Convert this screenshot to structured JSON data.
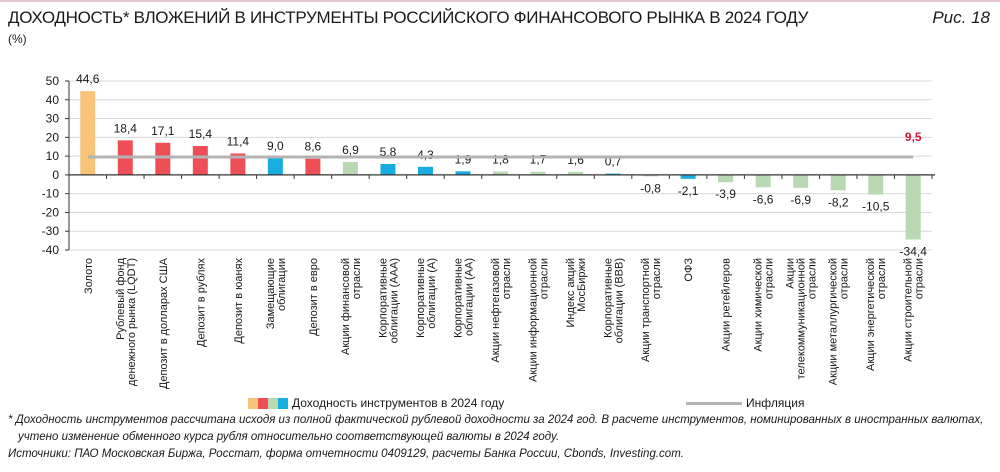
{
  "header": {
    "title": "ДОХОДНОСТЬ* ВЛОЖЕНИЙ В ИНСТРУМЕНТЫ РОССИЙСКОГО ФИНАНСОВОГО РЫНКА В 2024 ГОДУ",
    "figure": "Рис. 18",
    "unit": "(%)"
  },
  "colors": {
    "gold": "#F8C47A",
    "red": "#EE4F57",
    "green": "#B9D9B3",
    "blue": "#19ACE1",
    "inflation": "#B3B3B3",
    "inflation_label": "#D3173C"
  },
  "chart_data": {
    "type": "bar",
    "ylabel": "(%)",
    "ylim": [
      -40,
      50
    ],
    "yticks": [
      50,
      40,
      30,
      20,
      10,
      0,
      -10,
      -20,
      -30,
      -40
    ],
    "grid": true,
    "legend_position": "bottom",
    "categories": [
      [
        "Золото"
      ],
      [
        "Рублевый фонд",
        "денежного рынка (LQDT)"
      ],
      [
        "Депозит в долларах США"
      ],
      [
        "Депозит в рублях"
      ],
      [
        "Депозит в юанях"
      ],
      [
        "Замещающие",
        "облигации"
      ],
      [
        "Депозит в евро"
      ],
      [
        "Акции финансовой",
        "отрасли"
      ],
      [
        "Корпоративные",
        "облигации (ААА)"
      ],
      [
        "Корпоративные",
        "облигации (А)"
      ],
      [
        "Корпоративные",
        "облигации (АА)"
      ],
      [
        "Акции нефтегазовой",
        "отрасли"
      ],
      [
        "Акции информационной",
        "отрасли"
      ],
      [
        "Индекс акций",
        "МосБиржи"
      ],
      [
        "Корпоративные",
        "облигации (BBB)"
      ],
      [
        "Акции транспортной",
        "отрасли"
      ],
      [
        "ОФЗ"
      ],
      [
        "Акции ретейлеров"
      ],
      [
        "Акции химической",
        "отрасли"
      ],
      [
        "Акции",
        "телекоммуникационной",
        "отрасли"
      ],
      [
        "Акции металлургической",
        "отрасли"
      ],
      [
        "Акции энергетической",
        "отрасли"
      ],
      [
        "Акции строительной",
        "отрасли"
      ]
    ],
    "values": [
      44.6,
      18.4,
      17.1,
      15.4,
      11.4,
      9.0,
      8.6,
      6.9,
      5.8,
      4.3,
      1.9,
      1.8,
      1.7,
      1.6,
      0.7,
      -0.8,
      -2.1,
      -3.9,
      -6.6,
      -6.9,
      -8.2,
      -10.5,
      -34.4
    ],
    "value_labels": [
      "44,6",
      "18,4",
      "17,1",
      "15,4",
      "11,4",
      "9,0",
      "8,6",
      "6,9",
      "5,8",
      "4,3",
      "1,9",
      "1,8",
      "1,7",
      "1,6",
      "0,7",
      "-0,8",
      "-2,1",
      "-3,9",
      "-6,6",
      "-6,9",
      "-8,2",
      "-10,5",
      "-34,4"
    ],
    "bar_colors": [
      "gold",
      "red",
      "red",
      "red",
      "red",
      "blue",
      "red",
      "green",
      "blue",
      "blue",
      "blue",
      "green",
      "green",
      "green",
      "blue",
      "green",
      "blue",
      "green",
      "green",
      "green",
      "green",
      "green",
      "green"
    ],
    "series": [
      {
        "name": "Доходность инструментов в 2024 году",
        "type": "bar"
      },
      {
        "name": "Инфляция",
        "type": "line",
        "value": 9.5,
        "value_label": "9,5"
      }
    ]
  },
  "footnotes": {
    "note1": "* Доходность инструментов рассчитана исходя из полной фактической рублевой доходности за 2024 год. В расчете инструментов, номинированных в иностранных валютах,",
    "note2": "учтено изменение обменного курса рубля относительно соответствующей валюты в 2024 году.",
    "sources": "Источники: ПАО Московская Биржа, Росстат, форма отчетности 0409129, расчеты Банка России, Cbonds, Investing.com."
  }
}
